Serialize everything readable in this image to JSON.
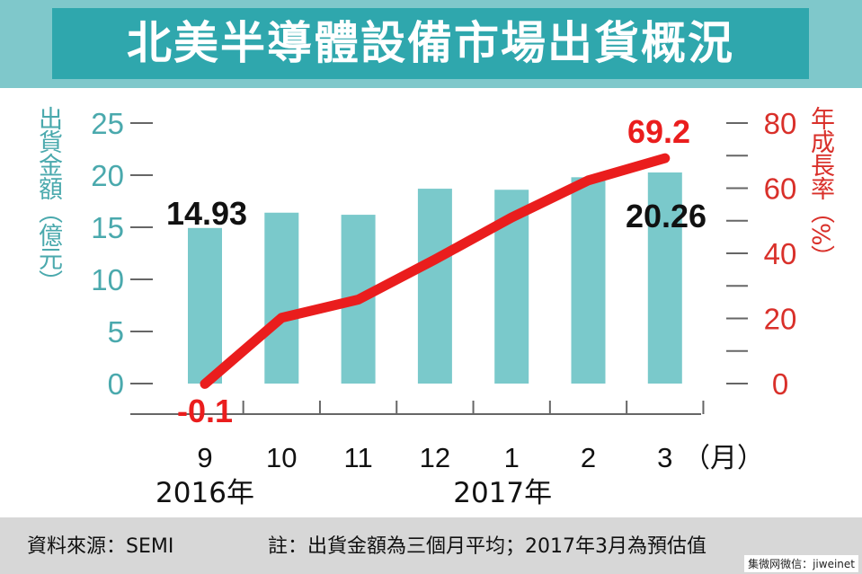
{
  "title": "北美半導體設備市場出貨概況",
  "footer": {
    "source": "資料來源：SEMI",
    "note": "註：出貨金額為三個月平均；2017年3月為預估值",
    "watermark": "集微网微信：jiweinet"
  },
  "colors": {
    "bar": "#7ac9cb",
    "line": "#ea1d1d",
    "left_axis": "#4aa9ad",
    "right_axis": "#d9302a",
    "title_bg": "#2fa7ad"
  },
  "chart_data": {
    "type": "bar+line",
    "categories": [
      "9",
      "10",
      "11",
      "12",
      "1",
      "2",
      "3"
    ],
    "x_unit": "（月）",
    "year_labels": [
      {
        "label": "2016年",
        "at": "9"
      },
      {
        "label": "2017年",
        "at": "1"
      }
    ],
    "left_axis": {
      "label": "出貨金額（億元）",
      "ticks": [
        "0",
        "5",
        "10",
        "15",
        "20",
        "25"
      ],
      "ylim": [
        0,
        25
      ]
    },
    "right_axis": {
      "label": "年成長率（%）",
      "ticks": [
        "0",
        "20",
        "40",
        "60",
        "80"
      ],
      "ylim": [
        0,
        80
      ]
    },
    "series": [
      {
        "kind": "bar",
        "axis": "left",
        "values": [
          14.93,
          16.4,
          16.2,
          18.7,
          18.6,
          19.8,
          20.26
        ]
      },
      {
        "kind": "line",
        "axis": "right",
        "values": [
          -0.1,
          20.2,
          25.8,
          38.1,
          51.0,
          62.4,
          69.2
        ]
      }
    ],
    "data_labels": {
      "bar_first": "14.93",
      "bar_last": "20.26",
      "line_first": "-0.1",
      "line_last": "69.2"
    }
  }
}
